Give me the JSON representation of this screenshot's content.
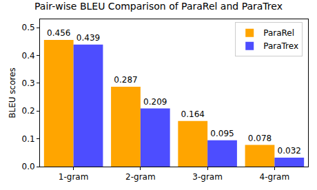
{
  "chart_data": {
    "type": "bar",
    "title": "Pair-wise BLEU Comparison of ParaRel and ParaTrex",
    "y_label": "BLEU scores",
    "categories": [
      "1-gram",
      "2-gram",
      "3-gram",
      "4-gram"
    ],
    "series": [
      {
        "name": "ParaRel",
        "color": "#ffa500",
        "values": [
          0.456,
          0.287,
          0.164,
          0.078
        ]
      },
      {
        "name": "ParaTrex",
        "color": "#4d4dff",
        "values": [
          0.439,
          0.209,
          0.095,
          0.032
        ]
      }
    ],
    "ylim": [
      0,
      0.53
    ],
    "yticks": [
      {
        "value": 0,
        "label": "0.0"
      },
      0.1,
      0.2,
      0.3,
      0.4,
      0.5
    ],
    "grid": false,
    "legend": "upper right",
    "data_labels": true
  }
}
